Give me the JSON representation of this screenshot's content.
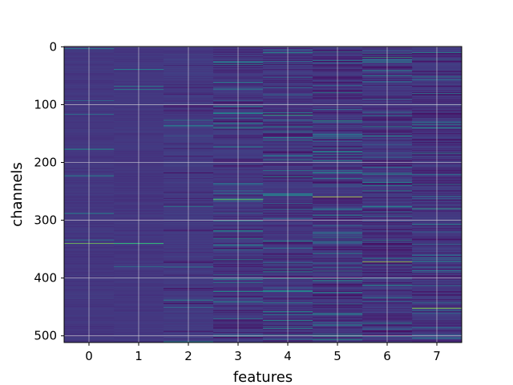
{
  "chart_data": {
    "type": "heatmap",
    "title": "",
    "xlabel": "features",
    "ylabel": "channels",
    "x_ticks": [
      "0",
      "1",
      "2",
      "3",
      "4",
      "5",
      "6",
      "7"
    ],
    "y_ticks": [
      "0",
      "100",
      "200",
      "300",
      "400",
      "500"
    ],
    "y_tick_values": [
      0,
      100,
      200,
      300,
      400,
      500
    ],
    "xlim": [
      -0.5,
      7.5
    ],
    "ylim": [
      511.5,
      -0.5
    ],
    "y_inverted": true,
    "grid": true,
    "colormap": "viridis",
    "n_features": 8,
    "n_channels": 512,
    "column_activity": [
      0.05,
      0.06,
      0.12,
      0.35,
      0.42,
      0.55,
      0.48,
      0.45
    ],
    "highlights": [
      {
        "feature": 0,
        "channel": 340,
        "value": 0.85
      },
      {
        "feature": 0,
        "channel": 177,
        "value": 0.6
      },
      {
        "feature": 1,
        "channel": 340,
        "value": 0.75
      },
      {
        "feature": 3,
        "channel": 264,
        "value": 0.8
      },
      {
        "feature": 4,
        "channel": 118,
        "value": 0.75
      },
      {
        "feature": 5,
        "channel": 260,
        "value": 0.95
      },
      {
        "feature": 5,
        "channel": 128,
        "value": 0.65
      },
      {
        "feature": 6,
        "channel": 372,
        "value": 0.9
      },
      {
        "feature": 6,
        "channel": 18,
        "value": 0.7
      },
      {
        "feature": 7,
        "channel": 452,
        "value": 0.85
      },
      {
        "feature": 7,
        "channel": 280,
        "value": 0.7
      },
      {
        "feature": 7,
        "channel": 52,
        "value": 0.6
      }
    ]
  }
}
